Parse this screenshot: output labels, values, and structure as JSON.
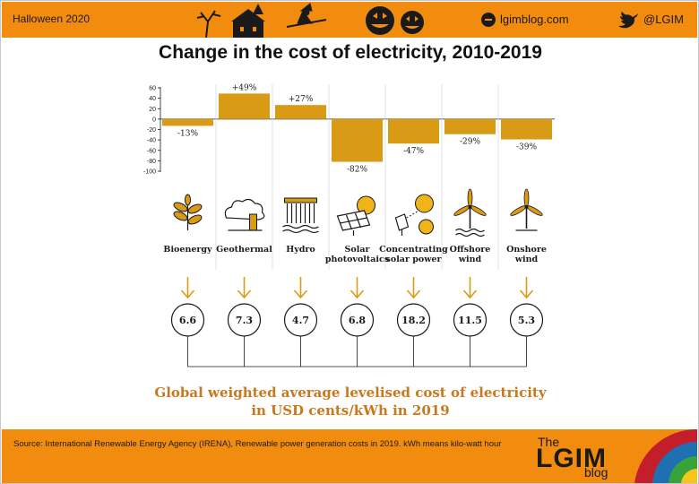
{
  "header": {
    "left_text": "Halloween 2020",
    "site": "lgimblog.com",
    "handle": "@LGIM",
    "accent_color": "#f28c0f"
  },
  "title": "Change in the cost of electricity, 2010-2019",
  "chart_data": {
    "type": "bar",
    "title": "Change in the cost of electricity, 2010-2019",
    "categories": [
      "Bioenergy",
      "Geothermal",
      "Hydro",
      "Solar photovoltaics",
      "Concentrating solar power",
      "Offshore wind",
      "Onshore wind"
    ],
    "category_lines": [
      [
        "Bioenergy"
      ],
      [
        "Geothermal"
      ],
      [
        "Hydro"
      ],
      [
        "Solar",
        "photovoltaics"
      ],
      [
        "Concentrating",
        "solar power"
      ],
      [
        "Offshore",
        "wind"
      ],
      [
        "Onshore",
        "wind"
      ]
    ],
    "values": [
      -13,
      49,
      27,
      -82,
      -47,
      -29,
      -39
    ],
    "value_labels": [
      "-13%",
      "+49%",
      "+27%",
      "-82%",
      "-47%",
      "-29%",
      "-39%"
    ],
    "yticks": [
      "60",
      "40",
      "20",
      "0",
      "-20",
      "-40",
      "-60",
      "-80",
      "-100"
    ],
    "ytick_values": [
      60,
      40,
      20,
      0,
      -20,
      -40,
      -60,
      -80,
      -100
    ],
    "ylim": [
      -100,
      60
    ],
    "bar_color": "#d99a16",
    "icons": [
      "plant-icon",
      "factory-icon",
      "dam-icon",
      "solar-panel-icon",
      "solar-tower-icon",
      "offshore-turbine-icon",
      "onshore-turbine-icon"
    ],
    "costs": [
      "6.6",
      "7.3",
      "4.7",
      "6.8",
      "18.2",
      "11.5",
      "5.3"
    ],
    "grid": false,
    "legend": "none"
  },
  "footnote": {
    "line1": "Global weighted average levelised cost of electricity",
    "line2": "in USD cents/kWh in 2019",
    "color": "#c9791d"
  },
  "footer": {
    "source": "Source: International Renewable Energy Agency (IRENA), Renewable power generation costs in 2019. kWh means kilo-watt hour",
    "logo_the": "The",
    "logo_main": "LGIM",
    "logo_blog": "blog"
  }
}
